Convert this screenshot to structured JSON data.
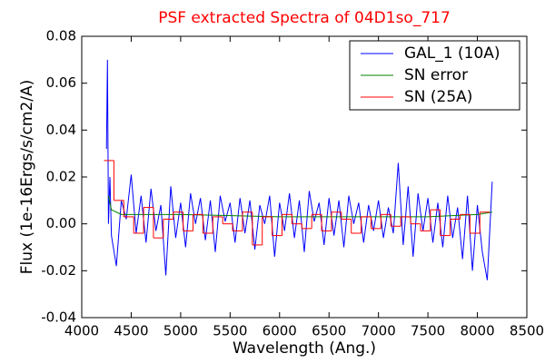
{
  "chart_data": {
    "type": "line",
    "title": "PSF extracted Spectra of 04D1so_717",
    "title_color": "#ff0000",
    "xlabel": "Wavelength (Ang.)",
    "ylabel": "Flux (1e-16Ergs/s/cm2/A)",
    "xlim": [
      4000,
      8500
    ],
    "xticks": [
      4000,
      4500,
      5000,
      5500,
      6000,
      6500,
      7000,
      7500,
      8000,
      8500
    ],
    "ylim": [
      -0.04,
      0.08
    ],
    "yticks": [
      {
        "value": -0.04,
        "label": "-0.04"
      },
      {
        "value": -0.02,
        "label": "-0.02"
      },
      {
        "value": 0,
        "label": "0.00"
      },
      {
        "value": 0.02,
        "label": "0.02"
      },
      {
        "value": 0.04,
        "label": "0.04"
      },
      {
        "value": 0.06,
        "label": "0.06"
      },
      {
        "value": 0.08,
        "label": "0.08"
      }
    ],
    "legend": "upper right",
    "series": [
      {
        "name": "GAL_1 (10A)",
        "color": "#0000ff",
        "drawstyle": "default",
        "x": [
          4250,
          4260,
          4270,
          4285,
          4300,
          4350,
          4400,
          4450,
          4500,
          4550,
          4600,
          4650,
          4700,
          4750,
          4800,
          4850,
          4900,
          4950,
          5000,
          5050,
          5100,
          5150,
          5200,
          5250,
          5300,
          5350,
          5400,
          5450,
          5500,
          5550,
          5600,
          5650,
          5700,
          5750,
          5800,
          5850,
          5900,
          5950,
          6000,
          6050,
          6100,
          6150,
          6200,
          6250,
          6300,
          6350,
          6400,
          6450,
          6500,
          6550,
          6600,
          6650,
          6700,
          6750,
          6800,
          6850,
          6900,
          6950,
          7000,
          7050,
          7100,
          7150,
          7200,
          7250,
          7300,
          7350,
          7400,
          7450,
          7500,
          7550,
          7600,
          7650,
          7700,
          7750,
          7800,
          7850,
          7900,
          7950,
          8000,
          8050,
          8100,
          8150
        ],
        "values": [
          0.032,
          0.07,
          0.0,
          0.02,
          -0.005,
          -0.018,
          0.01,
          0.002,
          0.021,
          -0.004,
          0.012,
          -0.008,
          0.015,
          -0.003,
          0.008,
          -0.022,
          0.016,
          -0.006,
          0.009,
          -0.01,
          0.013,
          0.0,
          0.011,
          -0.007,
          0.01,
          -0.012,
          0.012,
          0.001,
          0.009,
          -0.008,
          0.011,
          -0.004,
          0.01,
          -0.011,
          0.008,
          0.0,
          0.012,
          -0.014,
          0.009,
          -0.003,
          0.013,
          -0.006,
          0.01,
          -0.012,
          0.014,
          0.001,
          0.009,
          -0.009,
          0.011,
          -0.005,
          0.01,
          -0.01,
          0.012,
          0.0,
          0.009,
          -0.008,
          0.008,
          -0.003,
          0.01,
          -0.006,
          0.007,
          -0.004,
          0.026,
          -0.009,
          0.016,
          -0.014,
          0.013,
          -0.003,
          0.011,
          -0.008,
          0.009,
          -0.01,
          0.012,
          -0.006,
          0.007,
          -0.015,
          0.012,
          -0.02,
          0.008,
          -0.012,
          -0.024,
          0.018
        ]
      },
      {
        "name": "SN error",
        "color": "#008000",
        "drawstyle": "default",
        "x": [
          4270,
          4300,
          4400,
          5000,
          6000,
          7000,
          7500,
          8000,
          8150
        ],
        "values": [
          0.012,
          0.006,
          0.004,
          0.004,
          0.003,
          0.003,
          0.003,
          0.004,
          0.005
        ]
      },
      {
        "name": "SN (25A)",
        "color": "#ff0000",
        "drawstyle": "steps-mid",
        "x": [
          4275,
          4375,
          4475,
          4575,
          4675,
          4775,
          4875,
          4975,
          5075,
          5175,
          5275,
          5375,
          5475,
          5575,
          5675,
          5775,
          5875,
          5975,
          6075,
          6175,
          6275,
          6375,
          6475,
          6575,
          6675,
          6775,
          6875,
          6975,
          7075,
          7175,
          7275,
          7375,
          7475,
          7575,
          7675,
          7775,
          7875,
          7975,
          8075
        ],
        "values": [
          0.027,
          0.01,
          0.003,
          -0.004,
          0.007,
          -0.006,
          0.002,
          0.005,
          -0.003,
          0.004,
          -0.004,
          0.003,
          0.0,
          -0.003,
          0.005,
          -0.009,
          0.003,
          -0.005,
          0.004,
          0.0,
          -0.002,
          0.004,
          -0.003,
          0.005,
          0.002,
          -0.004,
          0.003,
          -0.002,
          0.004,
          -0.001,
          0.003,
          0.0,
          -0.003,
          0.006,
          -0.005,
          0.002,
          0.004,
          -0.004,
          0.005
        ]
      }
    ]
  }
}
